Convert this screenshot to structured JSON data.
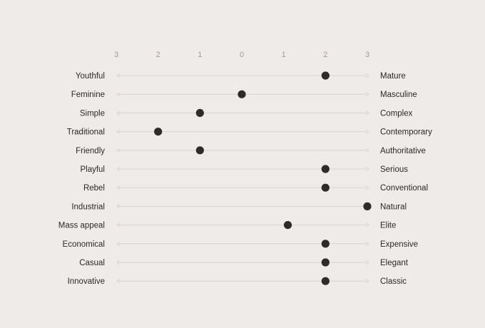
{
  "chart_data": {
    "type": "scatter",
    "title": "",
    "tick_labels": [
      "3",
      "2",
      "1",
      "0",
      "1",
      "2",
      "3"
    ],
    "xlim": [
      -3,
      3
    ],
    "grid": false,
    "colors": {
      "background": "#efebe8",
      "dot": "#2f2b29",
      "axis_line": "#d9d4d0",
      "tick_text": "#a09a96",
      "label_text": "#2b2826"
    },
    "rows": [
      {
        "left": "Youthful",
        "right": "Mature",
        "value": 2
      },
      {
        "left": "Feminine",
        "right": "Masculine",
        "value": 0
      },
      {
        "left": "Simple",
        "right": "Complex",
        "value": -1
      },
      {
        "left": "Traditional",
        "right": "Contemporary",
        "value": -2
      },
      {
        "left": "Friendly",
        "right": "Authoritative",
        "value": -1
      },
      {
        "left": "Playful",
        "right": "Serious",
        "value": 2
      },
      {
        "left": "Rebel",
        "right": "Conventional",
        "value": 2
      },
      {
        "left": "Industrial",
        "right": "Natural",
        "value": 3
      },
      {
        "left": "Mass appeal",
        "right": "Elite",
        "value": 1.1
      },
      {
        "left": "Economical",
        "right": "Expensive",
        "value": 2
      },
      {
        "left": "Casual",
        "right": "Elegant",
        "value": 2
      },
      {
        "left": "Innovative",
        "right": "Classic",
        "value": 2
      }
    ]
  }
}
